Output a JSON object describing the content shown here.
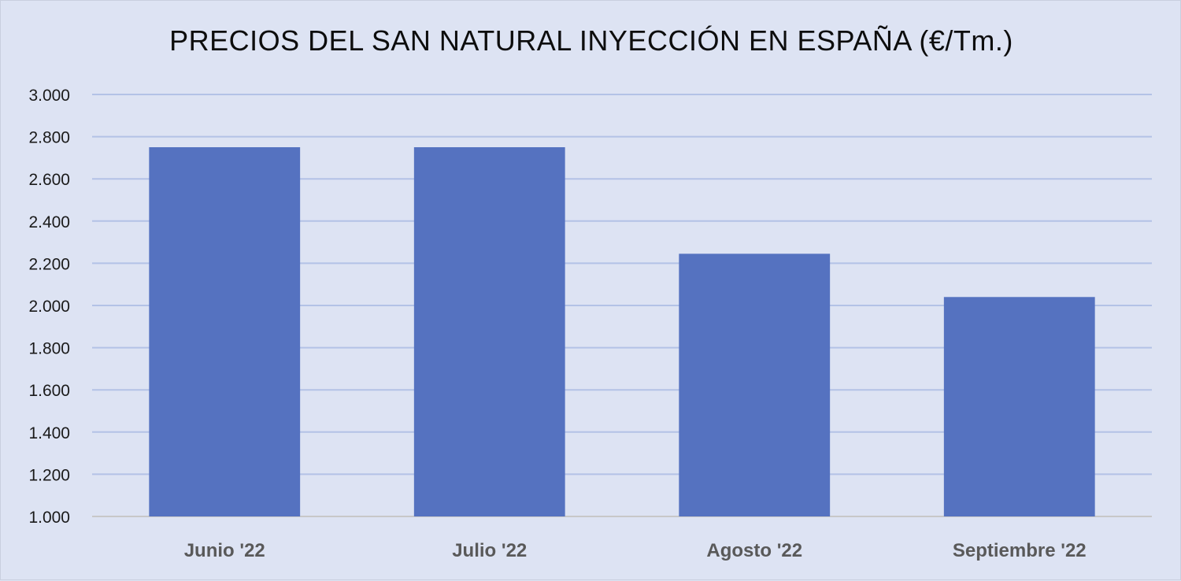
{
  "chart_data": {
    "type": "bar",
    "title": "PRECIOS DEL SAN NATURAL INYECCIÓN EN ESPAÑA (€/Tm.)",
    "categories": [
      "Junio '22",
      "Julio '22",
      "Agosto '22",
      "Septiembre '22"
    ],
    "values": [
      2750,
      2750,
      2245,
      2040
    ],
    "ylim": [
      1000,
      3000
    ],
    "yticks": [
      1000,
      1200,
      1400,
      1600,
      1800,
      2000,
      2200,
      2400,
      2600,
      2800,
      3000
    ],
    "ytick_labels": [
      "1.000",
      "1.200",
      "1.400",
      "1.600",
      "1.800",
      "2.000",
      "2.200",
      "2.400",
      "2.600",
      "2.800",
      "3.000"
    ],
    "grid": true,
    "colors": {
      "bar": "#5572c0",
      "grid": "#b3c2e6",
      "axis": "#c8c8c8",
      "background": "#dde3f3"
    }
  }
}
